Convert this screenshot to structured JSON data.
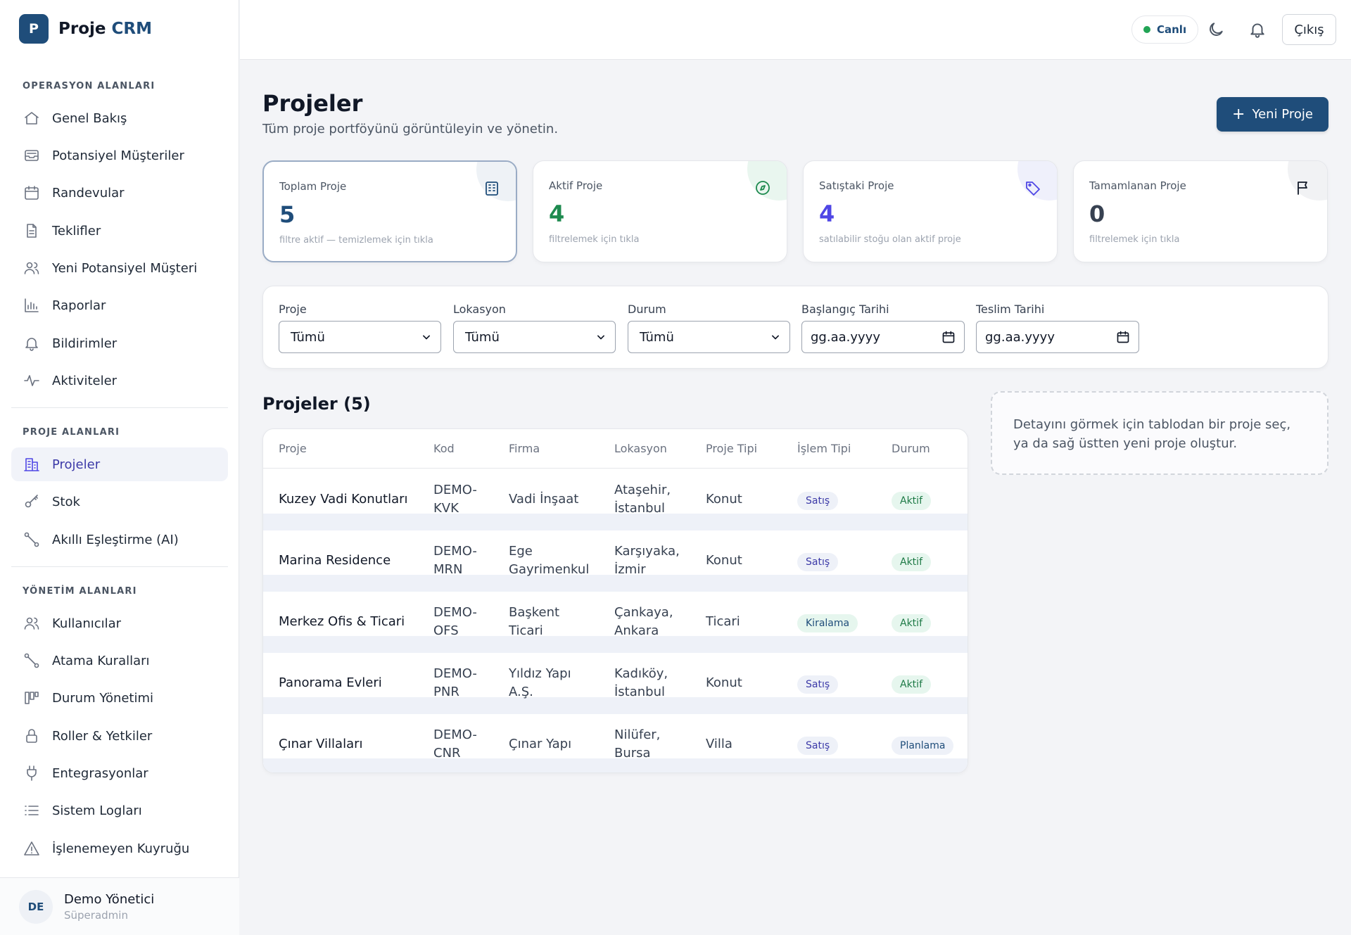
{
  "brand": {
    "logo_letter": "P",
    "name_part1": "Proje",
    "name_part2": "CRM"
  },
  "sidebar": {
    "section_ops": "OPERASYON ALANLARI",
    "ops_items": [
      {
        "label": "Genel Bakış",
        "icon": "home-icon"
      },
      {
        "label": "Potansiyel Müşteriler",
        "icon": "inbox-icon"
      },
      {
        "label": "Randevular",
        "icon": "calendar-icon"
      },
      {
        "label": "Teklifler",
        "icon": "document-icon"
      },
      {
        "label": "Yeni Potansiyel Müşteri",
        "icon": "users-icon"
      },
      {
        "label": "Raporlar",
        "icon": "bar-chart-icon"
      },
      {
        "label": "Bildirimler",
        "icon": "bell-icon"
      },
      {
        "label": "Aktiviteler",
        "icon": "activity-icon"
      }
    ],
    "section_projects": "PROJE ALANLARI",
    "project_items": [
      {
        "label": "Projeler",
        "icon": "building-icon",
        "active": true
      },
      {
        "label": "Stok",
        "icon": "key-icon"
      },
      {
        "label": "Akıllı Eşleştirme (AI)",
        "icon": "route-icon"
      }
    ],
    "section_admin": "YÖNETİM ALANLARI",
    "admin_items": [
      {
        "label": "Kullanıcılar",
        "icon": "users-icon"
      },
      {
        "label": "Atama Kuralları",
        "icon": "route-icon"
      },
      {
        "label": "Durum Yönetimi",
        "icon": "kanban-icon"
      },
      {
        "label": "Roller & Yetkiler",
        "icon": "lock-icon"
      },
      {
        "label": "Entegrasyonlar",
        "icon": "plug-icon"
      },
      {
        "label": "Sistem Logları",
        "icon": "list-icon"
      },
      {
        "label": "İşlenemeyen Kuyruğu",
        "icon": "warning-icon"
      }
    ],
    "user": {
      "initials": "DE",
      "name": "Demo Yönetici",
      "role": "Süperadmin"
    }
  },
  "header": {
    "live_label": "Canlı",
    "live_color": "#22a455",
    "theme_icon": "moon-icon",
    "notify_icon": "bell-icon",
    "logout_label": "Çıkış"
  },
  "page": {
    "title": "Projeler",
    "subtitle": "Tüm proje portföyünü görüntüleyin ve yönetin.",
    "new_button": "Yeni Proje",
    "accent": "#1f4d7a"
  },
  "stats": [
    {
      "label": "Toplam Proje",
      "value": "5",
      "hint": "filtre aktif — temizlemek için tıkla",
      "color": "#1f4d7a",
      "icon": "building-icon"
    },
    {
      "label": "Aktif Proje",
      "value": "4",
      "hint": "filtrelemek için tıkla",
      "color": "#1e8a4f",
      "icon": "compass-icon"
    },
    {
      "label": "Satıştaki Proje",
      "value": "4",
      "hint": "satılabilir stoğu olan aktif proje",
      "color": "#4f46e5",
      "icon": "tag-icon"
    },
    {
      "label": "Tamamlanan Proje",
      "value": "0",
      "hint": "filtrelemek için tıkla",
      "color": "#374151",
      "icon": "flag-icon"
    }
  ],
  "filters": {
    "project": {
      "label": "Proje",
      "value": "Tümü"
    },
    "location": {
      "label": "Lokasyon",
      "value": "Tümü"
    },
    "status": {
      "label": "Durum",
      "value": "Tümü"
    },
    "start_date": {
      "label": "Başlangıç Tarihi",
      "value": "gg.aa.yyyy"
    },
    "end_date": {
      "label": "Teslim Tarihi",
      "value": "gg.aa.yyyy"
    }
  },
  "table": {
    "title": "Projeler (5)",
    "columns": [
      "Proje",
      "Kod",
      "Firma",
      "Lokasyon",
      "Proje Tipi",
      "İşlem Tipi",
      "Durum"
    ],
    "rows": [
      {
        "name": "Kuzey Vadi Konutları",
        "code1": "DEMO-",
        "code2": "KVK",
        "firm1": "Vadi İnşaat",
        "firm2": "",
        "loc1": "Ataşehir,",
        "loc2": "İstanbul",
        "type": "Konut",
        "deal": "Satış",
        "deal_kind": "sale",
        "status": "Aktif",
        "status_kind": "active"
      },
      {
        "name": "Marina Residence",
        "code1": "DEMO-",
        "code2": "MRN",
        "firm1": "Ege",
        "firm2": "Gayrimenkul",
        "loc1": "Karşıyaka,",
        "loc2": "İzmir",
        "type": "Konut",
        "deal": "Satış",
        "deal_kind": "sale",
        "status": "Aktif",
        "status_kind": "active"
      },
      {
        "name": "Merkez Ofis & Ticari",
        "code1": "DEMO-",
        "code2": "OFS",
        "firm1": "Başkent",
        "firm2": "Ticari",
        "loc1": "Çankaya,",
        "loc2": "Ankara",
        "type": "Ticari",
        "deal": "Kiralama",
        "deal_kind": "rent",
        "status": "Aktif",
        "status_kind": "active"
      },
      {
        "name": "Panorama Evleri",
        "code1": "DEMO-",
        "code2": "PNR",
        "firm1": "Yıldız Yapı",
        "firm2": "A.Ş.",
        "loc1": "Kadıköy,",
        "loc2": "İstanbul",
        "type": "Konut",
        "deal": "Satış",
        "deal_kind": "sale",
        "status": "Aktif",
        "status_kind": "active"
      },
      {
        "name": "Çınar Villaları",
        "code1": "DEMO-",
        "code2": "CNR",
        "firm1": "Çınar Yapı",
        "firm2": "",
        "loc1": "Nilüfer,",
        "loc2": "Bursa",
        "type": "Villa",
        "deal": "Satış",
        "deal_kind": "sale",
        "status": "Planlama",
        "status_kind": "plan"
      }
    ]
  },
  "detail_hint": "Detayını görmek için tablodan bir proje seç, ya da sağ üstten yeni proje oluştur."
}
